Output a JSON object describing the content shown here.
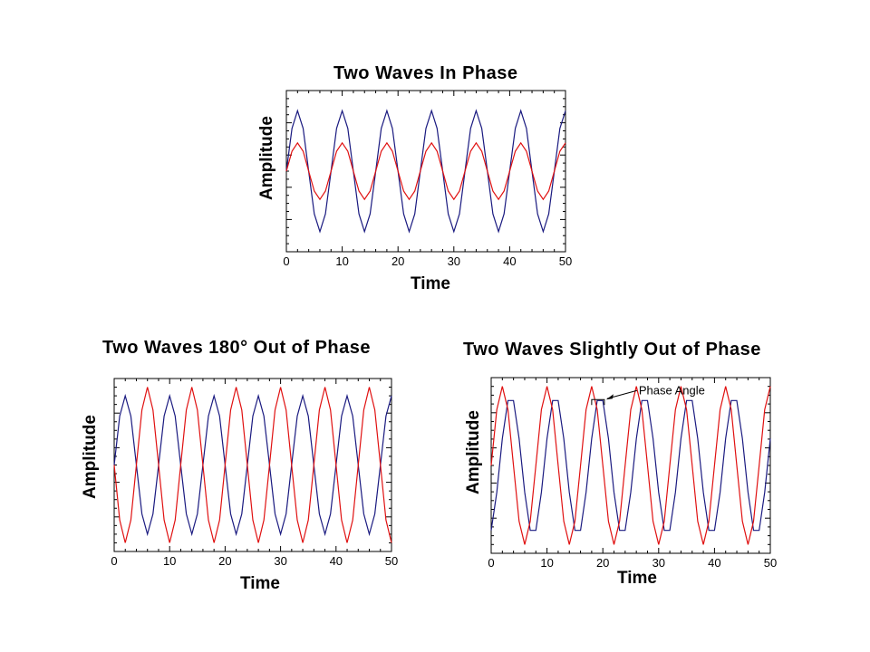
{
  "charts": [
    {
      "id": "in-phase",
      "title": "Two Waves In Phase",
      "xlabel": "Time",
      "ylabel": "Amplitude"
    },
    {
      "id": "out-180",
      "title": "Two Waves 180° Out of Phase",
      "xlabel": "Time",
      "ylabel": "Amplitude"
    },
    {
      "id": "slightly-out",
      "title": "Two Waves Slightly Out of Phase",
      "xlabel": "Time",
      "ylabel": "Amplitude",
      "annotation": "Phase Angle"
    }
  ],
  "colors": {
    "blue": "#1a1a80",
    "red": "#e01010",
    "axis": "#000000"
  },
  "chart_data": [
    {
      "type": "line",
      "title": "Two Waves In Phase",
      "xlabel": "Time",
      "ylabel": "Amplitude",
      "xlim": [
        0,
        50
      ],
      "ylim": [
        -1,
        1
      ],
      "x_ticks": [
        0,
        10,
        20,
        30,
        40,
        50
      ],
      "y_tick_labels": false,
      "period": 8,
      "series": [
        {
          "color": "#1a1a80",
          "amplitude": 0.75,
          "phase_shift": 0
        },
        {
          "color": "#e01010",
          "amplitude": 0.35,
          "phase_shift": 0
        }
      ]
    },
    {
      "type": "line",
      "title": "Two Waves 180° Out of Phase",
      "xlabel": "Time",
      "ylabel": "Amplitude",
      "xlim": [
        0,
        50
      ],
      "ylim": [
        -1,
        1
      ],
      "x_ticks": [
        0,
        10,
        20,
        30,
        40,
        50
      ],
      "y_tick_labels": false,
      "period": 8,
      "series": [
        {
          "color": "#1a1a80",
          "amplitude": 0.8,
          "phase_shift": 0
        },
        {
          "color": "#e01010",
          "amplitude": 0.9,
          "phase_shift": 4
        }
      ]
    },
    {
      "type": "line",
      "title": "Two Waves Slightly Out of Phase",
      "xlabel": "Time",
      "ylabel": "Amplitude",
      "xlim": [
        0,
        50
      ],
      "ylim": [
        -1,
        1
      ],
      "x_ticks": [
        0,
        10,
        20,
        30,
        40,
        50
      ],
      "y_tick_labels": false,
      "period": 8,
      "annotation": {
        "text": "Phase Angle",
        "x": 18,
        "y": 0.75
      },
      "series": [
        {
          "color": "#1a1a80",
          "amplitude": 0.8,
          "phase_shift": 1.5
        },
        {
          "color": "#e01010",
          "amplitude": 0.9,
          "phase_shift": 0
        }
      ]
    }
  ]
}
